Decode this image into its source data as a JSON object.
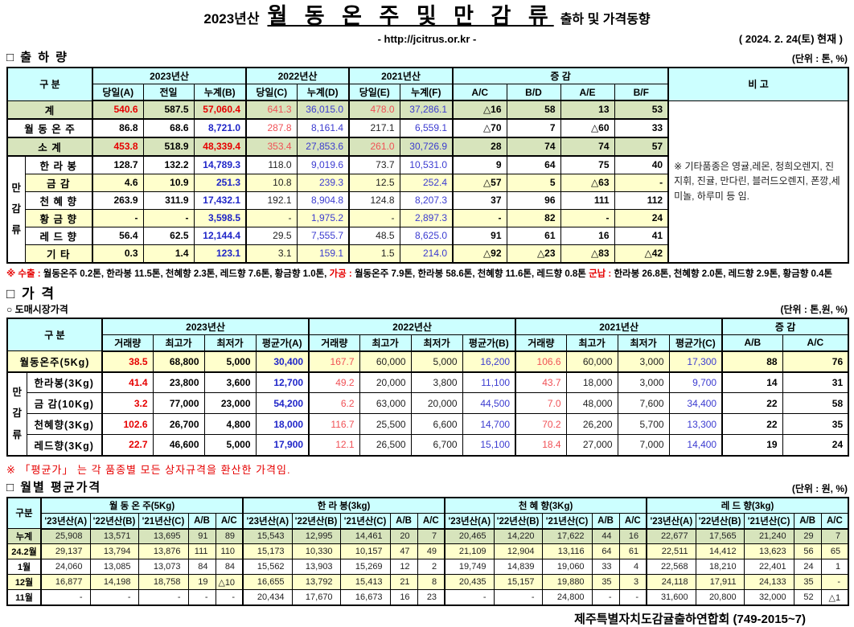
{
  "page": {
    "title_prefix": "2023년산",
    "title_main": "월 동 온 주 및 만 감 류",
    "title_suffix": "출하 및 가격동향",
    "url": "- http://jcitrus.or.kr -",
    "date": "( 2024.  2. 24(토) 현재 )",
    "footer": "제주특별자치도감귤출하연합회 (749-2015~7)"
  },
  "colors": {
    "header_bg": "#ccffff",
    "green_bg": "#d7e4bc",
    "yellow_bg": "#ffffcc",
    "red_text": "#e60000",
    "blue_text": "#1f25c8"
  },
  "shipment": {
    "heading": "□ 출 하 량",
    "unit": "(단위 : 톤, %)",
    "gubun_label": "구       분",
    "bigo_label": "비 고",
    "strip_label": "만\n감\n류",
    "col_groups": [
      "2023년산",
      "2022년산",
      "2021년산",
      "증          감"
    ],
    "sub_headers": [
      "당일(A)",
      "전일",
      "누계(B)",
      "당일(C)",
      "누계(D)",
      "당일(E)",
      "누계(F)",
      "A/C",
      "B/D",
      "A/E",
      "B/F"
    ],
    "note": "※ 기타품종은 영귤,레몬, 청희오렌지, 진지휘, 진귤, 만다린, 블러드오렌지, 폰깡,세미놀, 하루미 등 임.",
    "rows": [
      {
        "label": "계",
        "bg": "green",
        "label_bg": "green",
        "cells": [
          [
            "540.6",
            "rb"
          ],
          [
            "587.5",
            "kb"
          ],
          [
            "57,060.4",
            "rb"
          ],
          [
            "641.3",
            "r"
          ],
          [
            "36,015.0",
            "b"
          ],
          [
            "478.0",
            "r"
          ],
          [
            "37,286.1",
            "b"
          ],
          [
            "△16",
            "kb"
          ],
          [
            "58",
            "kb"
          ],
          [
            "13",
            "kb"
          ],
          [
            "53",
            "kb"
          ]
        ]
      },
      {
        "label": "월 동 온 주",
        "bg": "white",
        "label_bg": "cyan",
        "cells": [
          [
            "86.8",
            "kb"
          ],
          [
            "68.6",
            "kb"
          ],
          [
            "8,721.0",
            "bb"
          ],
          [
            "287.8",
            "r"
          ],
          [
            "8,161.4",
            "b"
          ],
          [
            "217.1",
            "k"
          ],
          [
            "6,559.1",
            "b"
          ],
          [
            "△70",
            "kb"
          ],
          [
            "7",
            "kb"
          ],
          [
            "△60",
            "kb"
          ],
          [
            "33",
            "kb"
          ]
        ]
      },
      {
        "label": "소    계",
        "bg": "green",
        "label_bg": "green",
        "cells": [
          [
            "453.8",
            "rb"
          ],
          [
            "518.9",
            "kb"
          ],
          [
            "48,339.4",
            "rb"
          ],
          [
            "353.4",
            "r"
          ],
          [
            "27,853.6",
            "b"
          ],
          [
            "261.0",
            "r"
          ],
          [
            "30,726.9",
            "b"
          ],
          [
            "28",
            "kb"
          ],
          [
            "74",
            "kb"
          ],
          [
            "74",
            "kb"
          ],
          [
            "57",
            "kb"
          ]
        ]
      },
      {
        "label": "한 라 봉",
        "bg": "white",
        "cells": [
          [
            "128.7",
            "kb"
          ],
          [
            "132.2",
            "kb"
          ],
          [
            "14,789.3",
            "bb"
          ],
          [
            "118.0",
            "k"
          ],
          [
            "9,019.6",
            "b"
          ],
          [
            "73.7",
            "k"
          ],
          [
            "10,531.0",
            "b"
          ],
          [
            "9",
            "kb"
          ],
          [
            "64",
            "kb"
          ],
          [
            "75",
            "kb"
          ],
          [
            "40",
            "kb"
          ]
        ]
      },
      {
        "label": "금    감",
        "bg": "yellow",
        "cells": [
          [
            "4.6",
            "kb"
          ],
          [
            "10.9",
            "kb"
          ],
          [
            "251.3",
            "bb"
          ],
          [
            "10.8",
            "k"
          ],
          [
            "239.3",
            "b"
          ],
          [
            "12.5",
            "k"
          ],
          [
            "252.4",
            "b"
          ],
          [
            "△57",
            "kb"
          ],
          [
            "5",
            "kb"
          ],
          [
            "△63",
            "kb"
          ],
          [
            "-",
            "kb"
          ]
        ]
      },
      {
        "label": "천 혜 향",
        "bg": "white",
        "cells": [
          [
            "263.9",
            "kb"
          ],
          [
            "311.9",
            "kb"
          ],
          [
            "17,432.1",
            "bb"
          ],
          [
            "192.1",
            "k"
          ],
          [
            "8,904.8",
            "b"
          ],
          [
            "124.8",
            "k"
          ],
          [
            "8,207.3",
            "b"
          ],
          [
            "37",
            "kb"
          ],
          [
            "96",
            "kb"
          ],
          [
            "111",
            "kb"
          ],
          [
            "112",
            "kb"
          ]
        ]
      },
      {
        "label": "황 금 향",
        "bg": "yellow",
        "cells": [
          [
            "-",
            "kb"
          ],
          [
            "-",
            "kb"
          ],
          [
            "3,598.5",
            "bb"
          ],
          [
            "-",
            "k"
          ],
          [
            "1,975.2",
            "b"
          ],
          [
            "-",
            "k"
          ],
          [
            "2,897.3",
            "b"
          ],
          [
            "-",
            "kb"
          ],
          [
            "82",
            "kb"
          ],
          [
            "-",
            "kb"
          ],
          [
            "24",
            "kb"
          ]
        ]
      },
      {
        "label": "레 드 향",
        "bg": "white",
        "cells": [
          [
            "56.4",
            "kb"
          ],
          [
            "62.5",
            "kb"
          ],
          [
            "12,144.4",
            "bb"
          ],
          [
            "29.5",
            "k"
          ],
          [
            "7,555.7",
            "b"
          ],
          [
            "48.5",
            "k"
          ],
          [
            "8,625.0",
            "b"
          ],
          [
            "91",
            "kb"
          ],
          [
            "61",
            "kb"
          ],
          [
            "16",
            "kb"
          ],
          [
            "41",
            "kb"
          ]
        ]
      },
      {
        "label": "기    타",
        "bg": "yellow",
        "cells": [
          [
            "0.3",
            "kb"
          ],
          [
            "1.4",
            "kb"
          ],
          [
            "123.1",
            "bb"
          ],
          [
            "3.1",
            "k"
          ],
          [
            "159.1",
            "b"
          ],
          [
            "1.5",
            "k"
          ],
          [
            "214.0",
            "b"
          ],
          [
            "△92",
            "kb"
          ],
          [
            "△23",
            "kb"
          ],
          [
            "△83",
            "kb"
          ],
          [
            "△42",
            "kb"
          ]
        ]
      }
    ]
  },
  "footnotes": {
    "shipment_segments": [
      {
        "t": "※ 수출 : ",
        "c": "red"
      },
      {
        "t": "월동온주 0.2톤, 한라봉 11.5톤, 천혜향 2.3톤, 레드향 7.6톤, 황금향 1.0톤, ",
        "c": "blk"
      },
      {
        "t": "가공 : ",
        "c": "red"
      },
      {
        "t": "월동온주 7.9톤, 한라봉 58.6톤, 천혜향 11.6톤, 레드향 0.8톤 ",
        "c": "blk"
      },
      {
        "t": "군납 : ",
        "c": "red"
      },
      {
        "t": "한라봉 26.8톤, 천혜향 2.0톤, 레드향 2.9톤, 황금향 0.4톤",
        "c": "blk"
      }
    ],
    "price_note": "※  「평균가」 는 각 품종별 모든 상자규격을 환산한 가격임."
  },
  "price": {
    "heading": "□ 가      격",
    "sub_heading": "○ 도매시장가격",
    "unit": "(단위 : 톤,원, %)",
    "gubun_label": "구       분",
    "strip_label": "만\n감\n류",
    "col_groups": [
      "2023년산",
      "2022년산",
      "2021년산",
      "증   감"
    ],
    "sub_headers": [
      "거래량",
      "최고가",
      "최저가",
      "평균가(A)",
      "거래량",
      "최고가",
      "최저가",
      "평균가(B)",
      "거래량",
      "최고가",
      "최저가",
      "평균가(C)",
      "A/B",
      "A/C"
    ],
    "rows": [
      {
        "label": "월동온주(5Kg)",
        "bg": "yellow",
        "label_bg": "cyan",
        "cells": [
          [
            "38.5",
            "rb"
          ],
          [
            "68,800",
            "kb"
          ],
          [
            "5,000",
            "kb"
          ],
          [
            "30,400",
            "bb"
          ],
          [
            "167.7",
            "r"
          ],
          [
            "60,000",
            "k"
          ],
          [
            "5,000",
            "k"
          ],
          [
            "16,200",
            "b"
          ],
          [
            "106.6",
            "r"
          ],
          [
            "60,000",
            "k"
          ],
          [
            "3,000",
            "k"
          ],
          [
            "17,300",
            "b"
          ],
          [
            "88",
            "kb"
          ],
          [
            "76",
            "kb"
          ]
        ]
      },
      {
        "label": "한라봉(3Kg)",
        "bg": "white",
        "cells": [
          [
            "41.4",
            "rb"
          ],
          [
            "23,800",
            "kb"
          ],
          [
            "3,600",
            "kb"
          ],
          [
            "12,700",
            "bb"
          ],
          [
            "49.2",
            "r"
          ],
          [
            "20,000",
            "k"
          ],
          [
            "3,800",
            "k"
          ],
          [
            "11,100",
            "b"
          ],
          [
            "43.7",
            "r"
          ],
          [
            "18,000",
            "k"
          ],
          [
            "3,000",
            "k"
          ],
          [
            "9,700",
            "b"
          ],
          [
            "14",
            "kb"
          ],
          [
            "31",
            "kb"
          ]
        ]
      },
      {
        "label": "금 감(10Kg)",
        "bg": "white",
        "cells": [
          [
            "3.2",
            "rb"
          ],
          [
            "77,000",
            "kb"
          ],
          [
            "23,000",
            "kb"
          ],
          [
            "54,200",
            "bb"
          ],
          [
            "6.2",
            "r"
          ],
          [
            "63,000",
            "k"
          ],
          [
            "20,000",
            "k"
          ],
          [
            "44,500",
            "b"
          ],
          [
            "7.0",
            "r"
          ],
          [
            "48,000",
            "k"
          ],
          [
            "7,600",
            "k"
          ],
          [
            "34,400",
            "b"
          ],
          [
            "22",
            "kb"
          ],
          [
            "58",
            "kb"
          ]
        ]
      },
      {
        "label": "천혜향(3Kg)",
        "bg": "white",
        "cells": [
          [
            "102.6",
            "rb"
          ],
          [
            "26,700",
            "kb"
          ],
          [
            "4,800",
            "kb"
          ],
          [
            "18,000",
            "bb"
          ],
          [
            "116.7",
            "r"
          ],
          [
            "25,500",
            "k"
          ],
          [
            "6,600",
            "k"
          ],
          [
            "14,700",
            "b"
          ],
          [
            "70.2",
            "r"
          ],
          [
            "26,200",
            "k"
          ],
          [
            "5,700",
            "k"
          ],
          [
            "13,300",
            "b"
          ],
          [
            "22",
            "kb"
          ],
          [
            "35",
            "kb"
          ]
        ]
      },
      {
        "label": "레드향(3Kg)",
        "bg": "white",
        "cells": [
          [
            "22.7",
            "rb"
          ],
          [
            "46,600",
            "kb"
          ],
          [
            "5,000",
            "kb"
          ],
          [
            "17,900",
            "bb"
          ],
          [
            "12.1",
            "r"
          ],
          [
            "26,500",
            "k"
          ],
          [
            "6,700",
            "k"
          ],
          [
            "15,100",
            "b"
          ],
          [
            "18.4",
            "r"
          ],
          [
            "27,000",
            "k"
          ],
          [
            "7,000",
            "k"
          ],
          [
            "14,400",
            "b"
          ],
          [
            "19",
            "kb"
          ],
          [
            "24",
            "kb"
          ]
        ]
      }
    ]
  },
  "monthly": {
    "heading": "□ 월별 평균가격",
    "unit": "(단위 : 원, %)",
    "gubun_label": "구분",
    "col_groups": [
      "월 동 온 주(5Kg)",
      "한  라  봉(3kg)",
      "천 혜 향(3Kg)",
      "레 드 향(3kg)"
    ],
    "sub_headers": [
      "'23년산(A)",
      "'22년산(B)",
      "'21년산(C)",
      "A/B",
      "A/C"
    ],
    "rows": [
      {
        "label": "누계",
        "bg": "green",
        "cells": [
          "25,908",
          "13,571",
          "13,695",
          "91",
          "89",
          "15,543",
          "12,995",
          "14,461",
          "20",
          "7",
          "20,465",
          "14,220",
          "17,622",
          "44",
          "16",
          "22,677",
          "17,565",
          "21,240",
          "29",
          "7"
        ]
      },
      {
        "label": "24.2월",
        "bg": "yellow",
        "cells": [
          "29,137",
          "13,794",
          "13,876",
          "111",
          "110",
          "15,173",
          "10,330",
          "10,157",
          "47",
          "49",
          "21,109",
          "12,904",
          "13,116",
          "64",
          "61",
          "22,511",
          "14,412",
          "13,623",
          "56",
          "65"
        ]
      },
      {
        "label": "1월",
        "bg": "white",
        "cells": [
          "24,060",
          "13,085",
          "13,073",
          "84",
          "84",
          "15,562",
          "13,903",
          "15,269",
          "12",
          "2",
          "19,749",
          "14,839",
          "19,060",
          "33",
          "4",
          "22,568",
          "18,210",
          "22,401",
          "24",
          "1"
        ]
      },
      {
        "label": "12월",
        "bg": "yellow",
        "cells": [
          "16,877",
          "14,198",
          "18,758",
          "19",
          "△10",
          "16,655",
          "13,792",
          "15,413",
          "21",
          "8",
          "20,435",
          "15,157",
          "19,880",
          "35",
          "3",
          "24,118",
          "17,911",
          "24,133",
          "35",
          "-"
        ]
      },
      {
        "label": "11월",
        "bg": "white",
        "cells": [
          "-",
          "-",
          "-",
          "-",
          "-",
          "20,434",
          "17,670",
          "16,673",
          "16",
          "23",
          "-",
          "-",
          "24,800",
          "-",
          "-",
          "31,600",
          "20,800",
          "32,000",
          "52",
          "△1"
        ]
      }
    ]
  }
}
